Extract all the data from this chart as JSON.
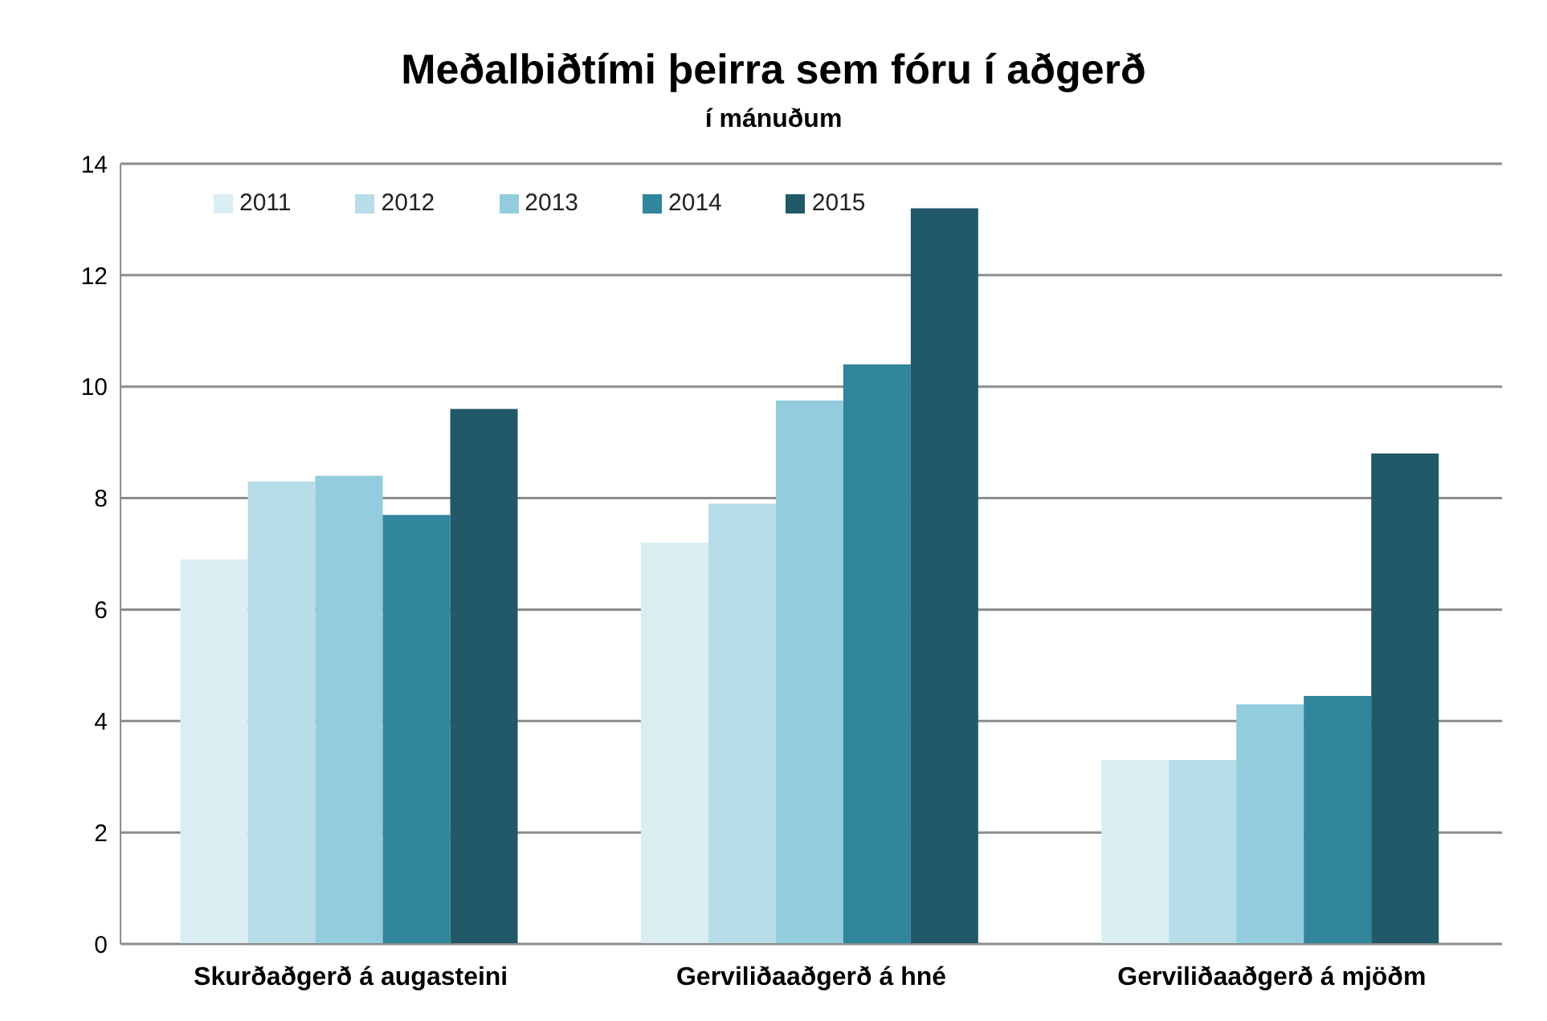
{
  "chart_data": {
    "type": "bar",
    "title": "Meðalbiðtími þeirra sem fóru í aðgerð",
    "subtitle": "í mánuðum",
    "categories": [
      "Skurðaðgerð á augasteini",
      "Gerviliðaaðgerð á hné",
      "Gerviliðaaðgerð á mjöðm"
    ],
    "series": [
      {
        "name": "2011",
        "color": "#daedf3",
        "values": [
          6.9,
          7.2,
          3.3
        ]
      },
      {
        "name": "2012",
        "color": "#b7dde8",
        "values": [
          8.3,
          7.9,
          3.3
        ]
      },
      {
        "name": "2013",
        "color": "#93cddd",
        "values": [
          8.4,
          9.75,
          4.3
        ]
      },
      {
        "name": "2014",
        "color": "#31859c",
        "values": [
          7.7,
          10.4,
          4.45
        ]
      },
      {
        "name": "2015",
        "color": "#215968",
        "values": [
          9.6,
          13.2,
          8.8
        ]
      }
    ],
    "ylim": [
      0,
      14
    ],
    "yticks": [
      0,
      2,
      4,
      6,
      8,
      10,
      12,
      14
    ],
    "grid": "y",
    "legend": "top left"
  }
}
